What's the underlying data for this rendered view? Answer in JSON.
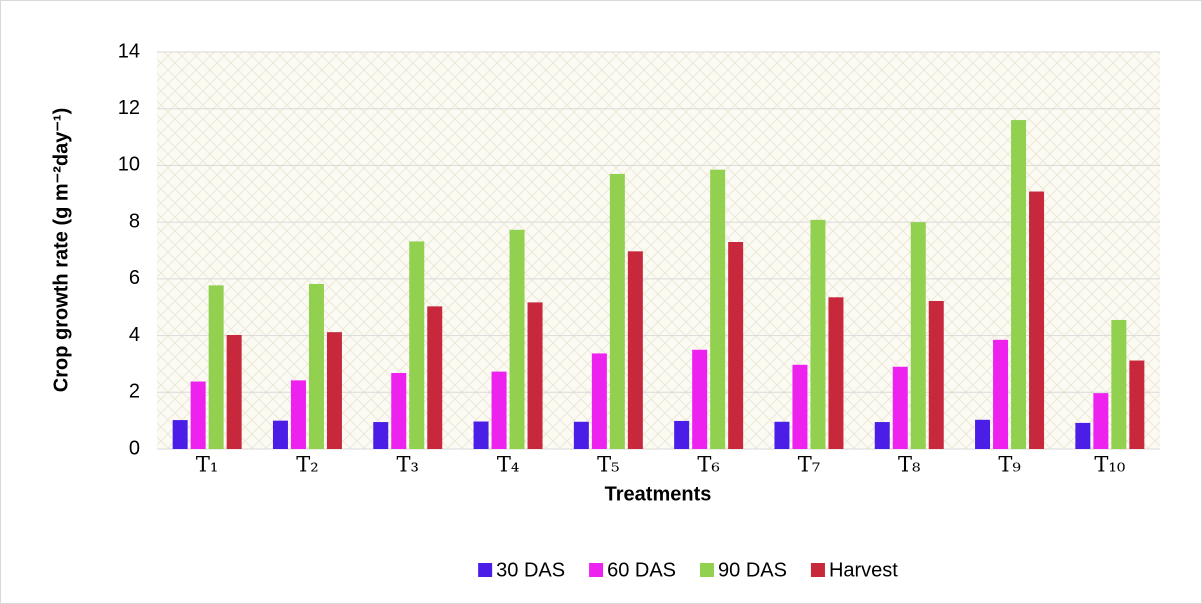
{
  "chart_data": {
    "type": "bar",
    "y_label": "Crop growth rate (g m⁻²day⁻¹)",
    "x_label": "Treatments",
    "categories": [
      "T₁",
      "T₂",
      "T₃",
      "T₄",
      "T₅",
      "T₆",
      "T₇",
      "T₈",
      "T₉",
      "T₁₀"
    ],
    "series": [
      {
        "name": "30 DAS",
        "color": "#4a1ee6",
        "values": [
          1.02,
          1.0,
          0.95,
          0.97,
          0.96,
          0.99,
          0.96,
          0.95,
          1.03,
          0.92
        ]
      },
      {
        "name": "60 DAS",
        "color": "#ee22ee",
        "values": [
          2.38,
          2.42,
          2.68,
          2.73,
          3.37,
          3.5,
          2.97,
          2.9,
          3.85,
          1.97
        ]
      },
      {
        "name": "90 DAS",
        "color": "#92d050",
        "values": [
          5.77,
          5.82,
          7.32,
          7.73,
          9.7,
          9.85,
          8.08,
          8.0,
          11.6,
          4.55
        ]
      },
      {
        "name": "Harvest",
        "color": "#c8283c",
        "values": [
          4.02,
          4.12,
          5.03,
          5.17,
          6.97,
          7.3,
          5.35,
          5.22,
          9.08,
          3.12
        ]
      }
    ],
    "ylim": [
      0,
      14
    ],
    "yticks": [
      0,
      2,
      4,
      6,
      8,
      10,
      12,
      14
    ],
    "grid": true,
    "legend": "bottom"
  }
}
